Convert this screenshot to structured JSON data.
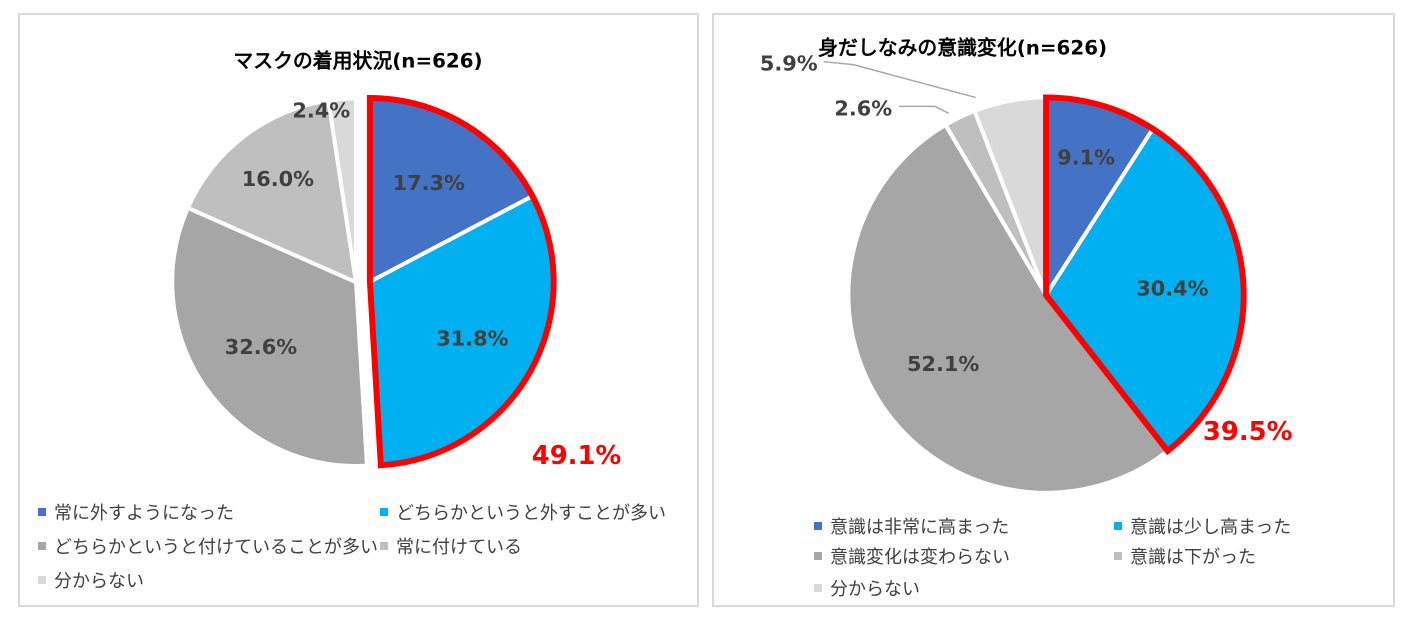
{
  "colors": {
    "highlight": "#ff0000",
    "label_dark": "#404040"
  },
  "chart_data": [
    {
      "type": "pie",
      "title": "マスクの着用状況(n=626)",
      "categories": [
        "常に外すようになった",
        "どちらかというと外すことが多い",
        "どちらかというと付けていることが多い",
        "常に付けている",
        "分からない"
      ],
      "values": [
        17.3,
        31.8,
        32.6,
        16.0,
        2.4
      ],
      "labels": [
        "17.3%",
        "31.8%",
        "32.6%",
        "16.0%",
        "2.4%"
      ],
      "colors": [
        "#4472c4",
        "#00b0f0",
        "#a6a6a6",
        "#bfbfbf",
        "#d9d9d9"
      ],
      "highlight_total": "49.1%",
      "highlight_slices": [
        0,
        1
      ],
      "legend_position": "bottom"
    },
    {
      "type": "pie",
      "title": "身だしなみの意識変化(n=626)",
      "categories": [
        "意識は非常に高まった",
        "意識は少し高まった",
        "意識変化は変わらない",
        "意識は下がった",
        "分からない"
      ],
      "values": [
        9.1,
        30.4,
        52.1,
        2.6,
        5.9
      ],
      "labels": [
        "9.1%",
        "30.4%",
        "52.1%",
        "2.6%",
        "5.9%"
      ],
      "colors": [
        "#4472c4",
        "#00b0f0",
        "#a6a6a6",
        "#bfbfbf",
        "#d9d9d9"
      ],
      "highlight_total": "39.5%",
      "highlight_slices": [
        0,
        1
      ],
      "legend_position": "bottom"
    }
  ]
}
